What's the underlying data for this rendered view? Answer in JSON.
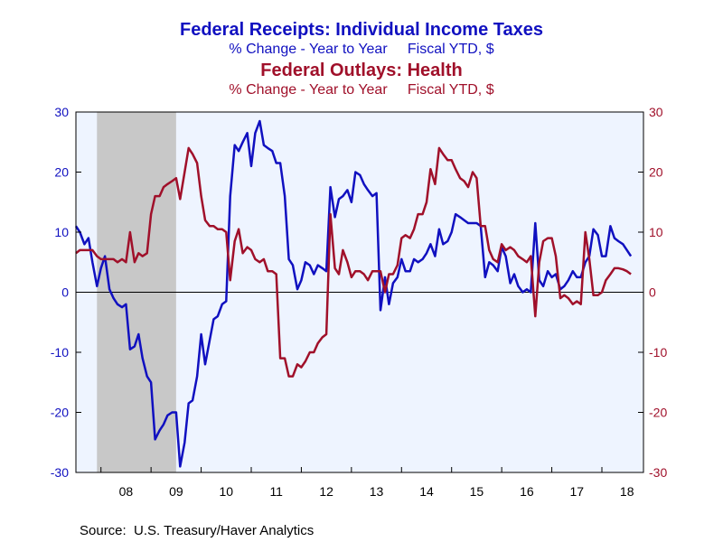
{
  "titles": {
    "series1_title": "Federal Receipts: Individual Income Taxes",
    "series1_subtitle": "% Change - Year to Year     Fiscal YTD, $",
    "series2_title": "Federal Outlays: Health",
    "series2_subtitle": "% Change - Year to Year     Fiscal YTD, $"
  },
  "source": "Source:  U.S. Treasury/Haver Analytics",
  "colors": {
    "series1": "#1010c0",
    "series2": "#a0102a",
    "plot_bg": "#eef4ff",
    "recession": "#c8c8c8"
  },
  "chart_data": {
    "type": "line",
    "xlim": [
      2007.5,
      2018.83
    ],
    "ylim_left": [
      -30,
      30
    ],
    "ylim_right": [
      -30,
      30
    ],
    "yticks": [
      -30,
      -20,
      -10,
      0,
      10,
      20,
      30
    ],
    "x_ticks": [
      {
        "label": "08",
        "value": 2008.5
      },
      {
        "label": "09",
        "value": 2009.5
      },
      {
        "label": "10",
        "value": 2010.5
      },
      {
        "label": "11",
        "value": 2011.5
      },
      {
        "label": "12",
        "value": 2012.5
      },
      {
        "label": "13",
        "value": 2013.5
      },
      {
        "label": "14",
        "value": 2014.5
      },
      {
        "label": "15",
        "value": 2015.5
      },
      {
        "label": "16",
        "value": 2016.5
      },
      {
        "label": "17",
        "value": 2017.5
      },
      {
        "label": "18",
        "value": 2018.5
      }
    ],
    "recession": [
      2007.92,
      2009.5
    ],
    "zero_line": true,
    "series": [
      {
        "axis": "left",
        "points": [
          [
            2007.5,
            11
          ],
          [
            2007.58,
            10
          ],
          [
            2007.67,
            8
          ],
          [
            2007.75,
            9
          ],
          [
            2007.83,
            5
          ],
          [
            2007.92,
            1
          ],
          [
            2008.0,
            4
          ],
          [
            2008.08,
            6
          ],
          [
            2008.17,
            0.5
          ],
          [
            2008.25,
            -1
          ],
          [
            2008.33,
            -2
          ],
          [
            2008.42,
            -2.5
          ],
          [
            2008.5,
            -2
          ],
          [
            2008.58,
            -9.5
          ],
          [
            2008.67,
            -9
          ],
          [
            2008.75,
            -7
          ],
          [
            2008.83,
            -11
          ],
          [
            2008.92,
            -14
          ],
          [
            2009.0,
            -15
          ],
          [
            2009.08,
            -24.5
          ],
          [
            2009.17,
            -23
          ],
          [
            2009.25,
            -22
          ],
          [
            2009.33,
            -20.5
          ],
          [
            2009.42,
            -20
          ],
          [
            2009.5,
            -20
          ],
          [
            2009.58,
            -29
          ],
          [
            2009.67,
            -25
          ],
          [
            2009.75,
            -18.5
          ],
          [
            2009.83,
            -18
          ],
          [
            2009.92,
            -14
          ],
          [
            2010.0,
            -7
          ],
          [
            2010.08,
            -12
          ],
          [
            2010.17,
            -8
          ],
          [
            2010.25,
            -4.5
          ],
          [
            2010.33,
            -4
          ],
          [
            2010.42,
            -2
          ],
          [
            2010.5,
            -1.5
          ],
          [
            2010.58,
            16
          ],
          [
            2010.67,
            24.5
          ],
          [
            2010.75,
            23.5
          ],
          [
            2010.83,
            25
          ],
          [
            2010.92,
            26.5
          ],
          [
            2011.0,
            21
          ],
          [
            2011.08,
            26.5
          ],
          [
            2011.17,
            28.5
          ],
          [
            2011.25,
            24.5
          ],
          [
            2011.33,
            24
          ],
          [
            2011.42,
            23.5
          ],
          [
            2011.5,
            21.5
          ],
          [
            2011.58,
            21.5
          ],
          [
            2011.67,
            16
          ],
          [
            2011.75,
            5.5
          ],
          [
            2011.83,
            4.5
          ],
          [
            2011.92,
            0.5
          ],
          [
            2012.0,
            2
          ],
          [
            2012.08,
            5
          ],
          [
            2012.17,
            4.5
          ],
          [
            2012.25,
            3
          ],
          [
            2012.33,
            4.5
          ],
          [
            2012.42,
            4
          ],
          [
            2012.5,
            3.5
          ],
          [
            2012.58,
            17.5
          ],
          [
            2012.67,
            12.5
          ],
          [
            2012.75,
            15.5
          ],
          [
            2012.83,
            16
          ],
          [
            2012.92,
            17
          ],
          [
            2013.0,
            15
          ],
          [
            2013.08,
            20
          ],
          [
            2013.17,
            19.5
          ],
          [
            2013.25,
            18
          ],
          [
            2013.33,
            17
          ],
          [
            2013.42,
            16
          ],
          [
            2013.5,
            16.5
          ],
          [
            2013.58,
            -3
          ],
          [
            2013.67,
            2.5
          ],
          [
            2013.75,
            -2
          ],
          [
            2013.83,
            1.5
          ],
          [
            2013.92,
            2.5
          ],
          [
            2014.0,
            5.5
          ],
          [
            2014.08,
            3.5
          ],
          [
            2014.17,
            3.5
          ],
          [
            2014.25,
            5.5
          ],
          [
            2014.33,
            5
          ],
          [
            2014.42,
            5.5
          ],
          [
            2014.5,
            6.5
          ],
          [
            2014.58,
            8
          ],
          [
            2014.67,
            6
          ],
          [
            2014.75,
            10.5
          ],
          [
            2014.83,
            8
          ],
          [
            2014.92,
            8.5
          ],
          [
            2015.0,
            10
          ],
          [
            2015.08,
            13
          ],
          [
            2015.17,
            12.5
          ],
          [
            2015.25,
            12
          ],
          [
            2015.33,
            11.5
          ],
          [
            2015.42,
            11.5
          ],
          [
            2015.5,
            11.5
          ],
          [
            2015.58,
            11
          ],
          [
            2015.67,
            2.5
          ],
          [
            2015.75,
            5
          ],
          [
            2015.83,
            4.5
          ],
          [
            2015.92,
            3.5
          ],
          [
            2016.0,
            7.5
          ],
          [
            2016.08,
            6
          ],
          [
            2016.17,
            1.5
          ],
          [
            2016.25,
            3
          ],
          [
            2016.33,
            1
          ],
          [
            2016.42,
            0
          ],
          [
            2016.5,
            0.5
          ],
          [
            2016.58,
            0
          ],
          [
            2016.67,
            11.5
          ],
          [
            2016.75,
            2
          ],
          [
            2016.83,
            1
          ],
          [
            2016.92,
            3.5
          ],
          [
            2017.0,
            2.5
          ],
          [
            2017.08,
            3
          ],
          [
            2017.17,
            0.5
          ],
          [
            2017.25,
            1
          ],
          [
            2017.33,
            2
          ],
          [
            2017.42,
            3.5
          ],
          [
            2017.5,
            2.5
          ],
          [
            2017.58,
            2.5
          ],
          [
            2017.67,
            5
          ],
          [
            2017.75,
            6
          ],
          [
            2017.83,
            10.5
          ],
          [
            2017.92,
            9.5
          ],
          [
            2018.0,
            6
          ],
          [
            2018.08,
            6
          ],
          [
            2018.17,
            11
          ],
          [
            2018.25,
            9
          ],
          [
            2018.33,
            8.5
          ],
          [
            2018.42,
            8
          ],
          [
            2018.5,
            7
          ],
          [
            2018.58,
            6
          ]
        ]
      },
      {
        "axis": "right",
        "points": [
          [
            2007.5,
            6.5
          ],
          [
            2007.58,
            7
          ],
          [
            2007.67,
            7
          ],
          [
            2007.75,
            7
          ],
          [
            2007.83,
            7
          ],
          [
            2007.92,
            6
          ],
          [
            2008.0,
            5.5
          ],
          [
            2008.08,
            5.5
          ],
          [
            2008.17,
            5.5
          ],
          [
            2008.25,
            5.5
          ],
          [
            2008.33,
            5
          ],
          [
            2008.42,
            5.5
          ],
          [
            2008.5,
            5
          ],
          [
            2008.58,
            10
          ],
          [
            2008.67,
            5
          ],
          [
            2008.75,
            6.5
          ],
          [
            2008.83,
            6
          ],
          [
            2008.92,
            6.5
          ],
          [
            2009.0,
            13
          ],
          [
            2009.08,
            16
          ],
          [
            2009.17,
            16
          ],
          [
            2009.25,
            17.5
          ],
          [
            2009.33,
            18
          ],
          [
            2009.42,
            18.5
          ],
          [
            2009.5,
            19
          ],
          [
            2009.58,
            15.5
          ],
          [
            2009.67,
            20
          ],
          [
            2009.75,
            24
          ],
          [
            2009.83,
            23
          ],
          [
            2009.92,
            21.5
          ],
          [
            2010.0,
            16
          ],
          [
            2010.08,
            12
          ],
          [
            2010.17,
            11
          ],
          [
            2010.25,
            11
          ],
          [
            2010.33,
            10.5
          ],
          [
            2010.42,
            10.5
          ],
          [
            2010.5,
            10
          ],
          [
            2010.58,
            2
          ],
          [
            2010.67,
            8.5
          ],
          [
            2010.75,
            10.5
          ],
          [
            2010.83,
            6.5
          ],
          [
            2010.92,
            7.5
          ],
          [
            2011.0,
            7
          ],
          [
            2011.08,
            5.5
          ],
          [
            2011.17,
            5
          ],
          [
            2011.25,
            5.5
          ],
          [
            2011.33,
            3.5
          ],
          [
            2011.42,
            3.5
          ],
          [
            2011.5,
            3
          ],
          [
            2011.58,
            -11
          ],
          [
            2011.67,
            -11
          ],
          [
            2011.75,
            -14
          ],
          [
            2011.83,
            -14
          ],
          [
            2011.92,
            -12
          ],
          [
            2012.0,
            -12.5
          ],
          [
            2012.08,
            -11.5
          ],
          [
            2012.17,
            -10
          ],
          [
            2012.25,
            -10
          ],
          [
            2012.33,
            -8.5
          ],
          [
            2012.42,
            -7.5
          ],
          [
            2012.5,
            -7
          ],
          [
            2012.58,
            13
          ],
          [
            2012.67,
            4
          ],
          [
            2012.75,
            3
          ],
          [
            2012.83,
            7
          ],
          [
            2012.92,
            5
          ],
          [
            2013.0,
            2.5
          ],
          [
            2013.08,
            3.5
          ],
          [
            2013.17,
            3.5
          ],
          [
            2013.25,
            3
          ],
          [
            2013.33,
            2
          ],
          [
            2013.42,
            3.5
          ],
          [
            2013.5,
            3.5
          ],
          [
            2013.58,
            3.5
          ],
          [
            2013.67,
            0
          ],
          [
            2013.75,
            3
          ],
          [
            2013.83,
            3
          ],
          [
            2013.92,
            4.5
          ],
          [
            2014.0,
            9
          ],
          [
            2014.08,
            9.5
          ],
          [
            2014.17,
            9
          ],
          [
            2014.25,
            10.5
          ],
          [
            2014.33,
            13
          ],
          [
            2014.42,
            13
          ],
          [
            2014.5,
            15
          ],
          [
            2014.58,
            20.5
          ],
          [
            2014.67,
            18
          ],
          [
            2014.75,
            24
          ],
          [
            2014.83,
            23
          ],
          [
            2014.92,
            22
          ],
          [
            2015.0,
            22
          ],
          [
            2015.08,
            20.5
          ],
          [
            2015.17,
            19
          ],
          [
            2015.25,
            18.5
          ],
          [
            2015.33,
            17.5
          ],
          [
            2015.42,
            20
          ],
          [
            2015.5,
            19
          ],
          [
            2015.58,
            11
          ],
          [
            2015.67,
            11
          ],
          [
            2015.75,
            7
          ],
          [
            2015.83,
            5.5
          ],
          [
            2015.92,
            5
          ],
          [
            2016.0,
            8
          ],
          [
            2016.08,
            7
          ],
          [
            2016.17,
            7.5
          ],
          [
            2016.25,
            7
          ],
          [
            2016.33,
            6
          ],
          [
            2016.42,
            5.5
          ],
          [
            2016.5,
            5
          ],
          [
            2016.58,
            6
          ],
          [
            2016.67,
            -4
          ],
          [
            2016.75,
            5
          ],
          [
            2016.83,
            8.5
          ],
          [
            2016.92,
            9
          ],
          [
            2017.0,
            9
          ],
          [
            2017.08,
            6
          ],
          [
            2017.17,
            -1
          ],
          [
            2017.25,
            -0.5
          ],
          [
            2017.33,
            -1
          ],
          [
            2017.42,
            -2
          ],
          [
            2017.5,
            -1.5
          ],
          [
            2017.58,
            -2
          ],
          [
            2017.67,
            10
          ],
          [
            2017.75,
            5.5
          ],
          [
            2017.83,
            -0.5
          ],
          [
            2017.92,
            -0.5
          ],
          [
            2018.0,
            0
          ],
          [
            2018.08,
            2
          ],
          [
            2018.17,
            3
          ],
          [
            2018.25,
            4
          ],
          [
            2018.33,
            4
          ],
          [
            2018.42,
            3.8
          ],
          [
            2018.5,
            3.5
          ],
          [
            2018.58,
            3
          ]
        ]
      }
    ]
  }
}
